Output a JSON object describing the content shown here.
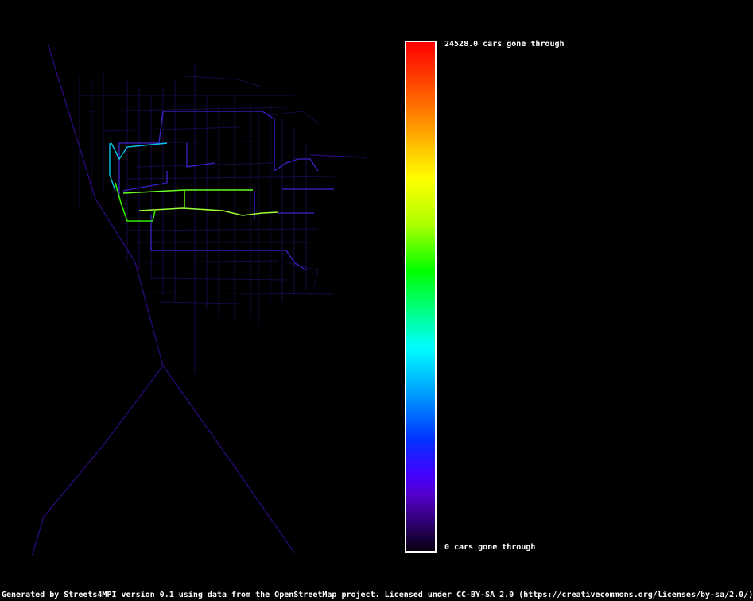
{
  "legend": {
    "max_label": "24528.0 cars gone through",
    "min_label": "0 cars gone through",
    "max_value": 24528.0,
    "min_value": 0,
    "gradient_colors": [
      "#ff0000",
      "#ffff00",
      "#00ff00",
      "#00ffff",
      "#0000ff",
      "#5500cc",
      "#000000"
    ]
  },
  "footer_text": "Generated by Streets4MPI version 0.1 using data from the OpenStreetMap project. Licensed under CC-BY-SA 2.0 (https://creativecommons.org/licenses/by-sa/2.0/)",
  "colors": {
    "background": "#000000",
    "low_traffic": "#2a0a7a",
    "mid_low": "#3a22cc",
    "cyan": "#00e0e0",
    "green": "#44ee00",
    "yellow_green": "#ccff33"
  },
  "traffic_levels": {
    "main_east_west_corridor": 0.33,
    "southern_corridor": 0.25,
    "west_diagonal": 0.4,
    "north_links": 0.6,
    "highways": 0.1
  }
}
